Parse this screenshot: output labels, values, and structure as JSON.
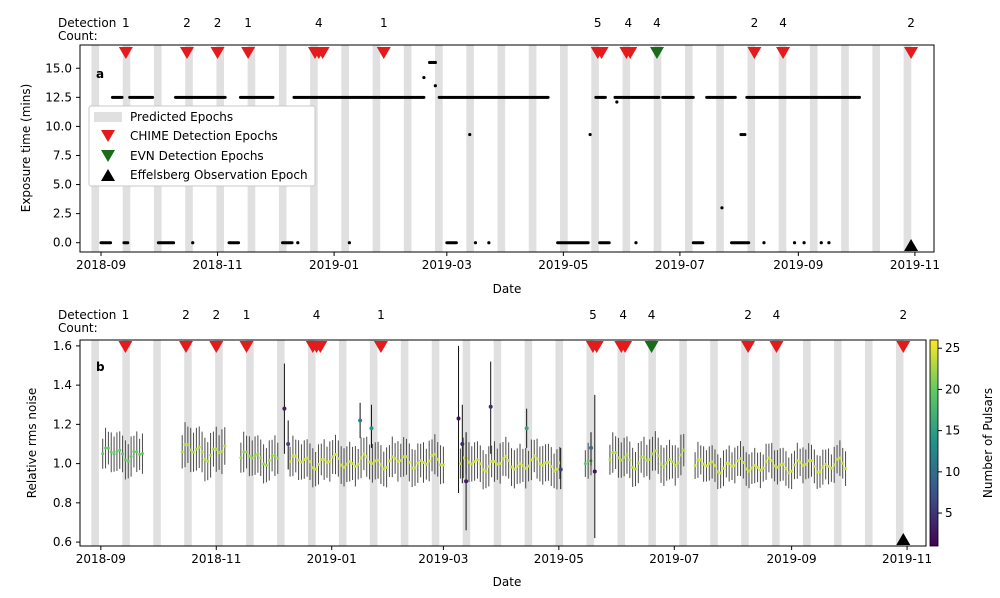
{
  "chart_data": [
    {
      "type": "scatter",
      "panel_label": "a",
      "title": "",
      "xlabel": "Date",
      "ylabel": "Exposure time (mins)",
      "ylim": [
        -0.8,
        17.0
      ],
      "yticks": [
        0.0,
        2.5,
        5.0,
        7.5,
        10.0,
        12.5,
        15.0
      ],
      "ytick_labels": [
        "0.0",
        "2.5",
        "5.0",
        "7.5",
        "10.0",
        "12.5",
        "15.0"
      ],
      "detection_count_label": [
        "Detection",
        "Count:"
      ],
      "legend": {
        "placement": "center-left",
        "entries": [
          {
            "label": "Predicted Epochs",
            "marker": "band",
            "color": "#e0e0e0"
          },
          {
            "label": "CHIME Detection Epochs",
            "marker": "triangle-down",
            "color": "#e41a1c"
          },
          {
            "label": "EVN Detection Epochs",
            "marker": "triangle-down",
            "color": "#1a6b1a"
          },
          {
            "label": "Effelsberg Observation Epoch",
            "marker": "triangle-up",
            "color": "#000000"
          }
        ]
      },
      "exposure_series": [
        {
          "start": "2018-09-01",
          "end": "2018-09-06",
          "step": 0.5,
          "value": 0.0
        },
        {
          "start": "2018-09-07",
          "end": "2018-09-12",
          "step": 0.5,
          "value": 12.5
        },
        {
          "start": "2018-09-13",
          "end": "2018-09-15",
          "step": 0.5,
          "value": 0.0
        },
        {
          "start": "2018-09-16",
          "end": "2018-09-28",
          "step": 0.5,
          "value": 12.5
        },
        {
          "start": "2018-10-01",
          "end": "2018-10-09",
          "step": 0.5,
          "value": 0.0
        },
        {
          "start": "2018-10-10",
          "end": "2018-11-05",
          "step": 0.5,
          "value": 12.5
        },
        {
          "start": "2018-11-07",
          "end": "2018-11-12",
          "step": 0.5,
          "value": 0.0
        },
        {
          "start": "2018-11-13",
          "end": "2018-11-30",
          "step": 0.5,
          "value": 12.5
        },
        {
          "start": "2018-12-05",
          "end": "2018-12-10",
          "step": 0.5,
          "value": 0.0
        },
        {
          "start": "2018-12-11",
          "end": "2019-02-17",
          "step": 0.5,
          "value": 12.5
        },
        {
          "start": "2019-02-25",
          "end": "2019-04-23",
          "step": 0.5,
          "value": 12.5
        },
        {
          "start": "2019-03-01",
          "end": "2019-03-06",
          "step": 0.5,
          "value": 0.0
        },
        {
          "start": "2019-04-28",
          "end": "2019-05-14",
          "step": 0.5,
          "value": 0.0
        },
        {
          "start": "2019-05-18",
          "end": "2019-05-23",
          "step": 0.5,
          "value": 12.5
        },
        {
          "start": "2019-05-20",
          "end": "2019-05-25",
          "step": 0.5,
          "value": 0.0
        },
        {
          "start": "2019-05-28",
          "end": "2019-06-20",
          "step": 0.5,
          "value": 12.5
        },
        {
          "start": "2019-06-22",
          "end": "2019-07-08",
          "step": 0.5,
          "value": 12.5
        },
        {
          "start": "2019-07-08",
          "end": "2019-07-13",
          "step": 0.5,
          "value": 0.0
        },
        {
          "start": "2019-07-15",
          "end": "2019-07-30",
          "step": 0.5,
          "value": 12.5
        },
        {
          "start": "2019-07-28",
          "end": "2019-08-06",
          "step": 0.5,
          "value": 0.0
        },
        {
          "start": "2019-08-05",
          "end": "2019-10-03",
          "step": 0.5,
          "value": 12.5
        }
      ],
      "exposure_points": [
        {
          "x": "2018-10-19",
          "y": 0.0
        },
        {
          "x": "2018-12-13",
          "y": 0.0
        },
        {
          "x": "2019-01-09",
          "y": 0.0
        },
        {
          "x": "2019-02-20",
          "y": 15.5
        },
        {
          "x": "2019-02-21",
          "y": 15.5
        },
        {
          "x": "2019-02-22",
          "y": 15.5
        },
        {
          "x": "2019-02-23",
          "y": 15.5
        },
        {
          "x": "2019-02-17",
          "y": 14.2
        },
        {
          "x": "2019-02-23",
          "y": 13.5
        },
        {
          "x": "2019-03-13",
          "y": 9.3
        },
        {
          "x": "2019-03-16",
          "y": 0.0
        },
        {
          "x": "2019-03-23",
          "y": 0.0
        },
        {
          "x": "2019-05-15",
          "y": 9.3
        },
        {
          "x": "2019-05-29",
          "y": 12.1
        },
        {
          "x": "2019-06-08",
          "y": 0.0
        },
        {
          "x": "2019-07-23",
          "y": 3.0
        },
        {
          "x": "2019-08-02",
          "y": 9.3
        },
        {
          "x": "2019-08-03",
          "y": 9.3
        },
        {
          "x": "2019-08-04",
          "y": 9.3
        },
        {
          "x": "2019-08-14",
          "y": 0.0
        },
        {
          "x": "2019-08-30",
          "y": 0.0
        },
        {
          "x": "2019-09-04",
          "y": 0.0
        },
        {
          "x": "2019-09-13",
          "y": 0.0
        },
        {
          "x": "2019-09-17",
          "y": 0.0
        }
      ]
    },
    {
      "type": "scatter",
      "panel_label": "b",
      "title": "",
      "xlabel": "Date",
      "ylabel": "Relative rms noise",
      "ylim": [
        0.58,
        1.63
      ],
      "yticks": [
        0.6,
        0.8,
        1.0,
        1.2,
        1.4,
        1.6
      ],
      "ytick_labels": [
        "0.6",
        "0.8",
        "1.0",
        "1.2",
        "1.4",
        "1.6"
      ],
      "detection_count_label": [
        "Detection",
        "Count:"
      ],
      "colorbar": {
        "label": "Number of Pulsars",
        "range": [
          1,
          26
        ],
        "ticks": [
          5,
          10,
          15,
          20,
          25
        ],
        "colors": [
          "#440154",
          "#3b528b",
          "#21918c",
          "#5ec962",
          "#fde725"
        ]
      },
      "noise_segments": [
        {
          "start": "2018-09-02",
          "end": "2018-09-24",
          "step": 1.5,
          "center": 1.05,
          "halfwidth": 0.09,
          "amp": 0.04,
          "n": 20
        },
        {
          "start": "2018-10-14",
          "end": "2018-11-06",
          "step": 1.5,
          "center": 1.06,
          "halfwidth": 0.1,
          "amp": 0.05,
          "n": 23
        },
        {
          "start": "2018-11-14",
          "end": "2018-12-04",
          "step": 1.5,
          "center": 1.03,
          "halfwidth": 0.09,
          "amp": 0.04,
          "n": 22
        },
        {
          "start": "2018-12-10",
          "end": "2019-03-02",
          "step": 1.5,
          "center": 1.01,
          "halfwidth": 0.09,
          "amp": 0.04,
          "n": 24
        },
        {
          "start": "2019-03-10",
          "end": "2019-05-02",
          "step": 1.5,
          "center": 1.0,
          "halfwidth": 0.09,
          "amp": 0.04,
          "n": 24
        },
        {
          "start": "2019-05-15",
          "end": "2019-05-18",
          "step": 1.5,
          "center": 1.0,
          "halfwidth": 0.08,
          "amp": 0.02,
          "n": 20
        },
        {
          "start": "2019-05-28",
          "end": "2019-07-06",
          "step": 1.5,
          "center": 1.02,
          "halfwidth": 0.09,
          "amp": 0.05,
          "n": 23
        },
        {
          "start": "2019-07-12",
          "end": "2019-09-30",
          "step": 1.5,
          "center": 0.99,
          "halfwidth": 0.08,
          "amp": 0.04,
          "n": 24
        }
      ],
      "noise_outliers": [
        {
          "x": "2018-12-07",
          "y": 1.28,
          "lo": 1.05,
          "hi": 1.51,
          "n": 3
        },
        {
          "x": "2018-12-09",
          "y": 1.1,
          "lo": 0.97,
          "hi": 1.22,
          "n": 6
        },
        {
          "x": "2019-01-16",
          "y": 1.22,
          "lo": 1.13,
          "hi": 1.31,
          "n": 12
        },
        {
          "x": "2019-01-22",
          "y": 1.18,
          "lo": 1.08,
          "hi": 1.3,
          "n": 14
        },
        {
          "x": "2019-03-09",
          "y": 1.23,
          "lo": 0.85,
          "hi": 1.6,
          "n": 2
        },
        {
          "x": "2019-03-11",
          "y": 1.1,
          "lo": 0.9,
          "hi": 1.3,
          "n": 4
        },
        {
          "x": "2019-03-13",
          "y": 0.91,
          "lo": 0.66,
          "hi": 1.16,
          "n": 3
        },
        {
          "x": "2019-03-26",
          "y": 1.29,
          "lo": 1.05,
          "hi": 1.52,
          "n": 4
        },
        {
          "x": "2019-04-14",
          "y": 1.18,
          "lo": 1.08,
          "hi": 1.28,
          "n": 16
        },
        {
          "x": "2019-05-02",
          "y": 0.97,
          "lo": 0.87,
          "hi": 1.08,
          "n": 6
        },
        {
          "x": "2019-05-20",
          "y": 0.96,
          "lo": 0.62,
          "hi": 1.35,
          "n": 2
        },
        {
          "x": "2019-05-18",
          "y": 1.08,
          "lo": 0.99,
          "hi": 1.16,
          "n": 10
        }
      ]
    }
  ],
  "shared": {
    "x_date_range": [
      "2018-08-21",
      "2019-11-11"
    ],
    "xtick_dates": [
      "2018-09-01",
      "2018-11-01",
      "2019-01-01",
      "2019-03-01",
      "2019-05-01",
      "2019-07-01",
      "2019-09-01",
      "2019-11-01"
    ],
    "xtick_labels": [
      "2018-09",
      "2018-11",
      "2019-01",
      "2019-03",
      "2019-05",
      "2019-07",
      "2019-09",
      "2019-11"
    ],
    "predicted_epochs_start": "2018-08-27",
    "predicted_epochs_period_days": 16.35,
    "predicted_epochs_width_days": 4.0,
    "predicted_epochs_count": 28,
    "detections": [
      {
        "date": "2018-09-14",
        "count": 1,
        "source": "CHIME"
      },
      {
        "date": "2018-10-16",
        "count": 2,
        "source": "CHIME"
      },
      {
        "date": "2018-11-01",
        "count": 2,
        "source": "CHIME"
      },
      {
        "date": "2018-11-17",
        "count": 1,
        "source": "CHIME"
      },
      {
        "date": "2018-12-24",
        "count": 4,
        "source": "CHIME",
        "sub": [
          "2018-12-22",
          "2018-12-24",
          "2018-12-26"
        ]
      },
      {
        "date": "2019-01-27",
        "count": 1,
        "source": "CHIME"
      },
      {
        "date": "2019-05-19",
        "count": 5,
        "source": "CHIME",
        "sub": [
          "2019-05-19",
          "2019-05-21"
        ]
      },
      {
        "date": "2019-06-04",
        "count": 4,
        "source": "CHIME",
        "sub": [
          "2019-06-03",
          "2019-06-05"
        ]
      },
      {
        "date": "2019-06-19",
        "count": 4,
        "source": "EVN"
      },
      {
        "date": "2019-08-09",
        "count": 2,
        "source": "CHIME"
      },
      {
        "date": "2019-08-24",
        "count": 4,
        "source": "CHIME"
      },
      {
        "date": "2019-10-30",
        "count": 2,
        "source": "CHIME"
      }
    ],
    "effelsberg_date": "2019-10-30",
    "colors": {
      "chime": "#e41a1c",
      "evn": "#1a6b1a",
      "effelsberg": "#000000",
      "band": "#e0e0e0",
      "errorbar": "#4a4a4a"
    }
  }
}
